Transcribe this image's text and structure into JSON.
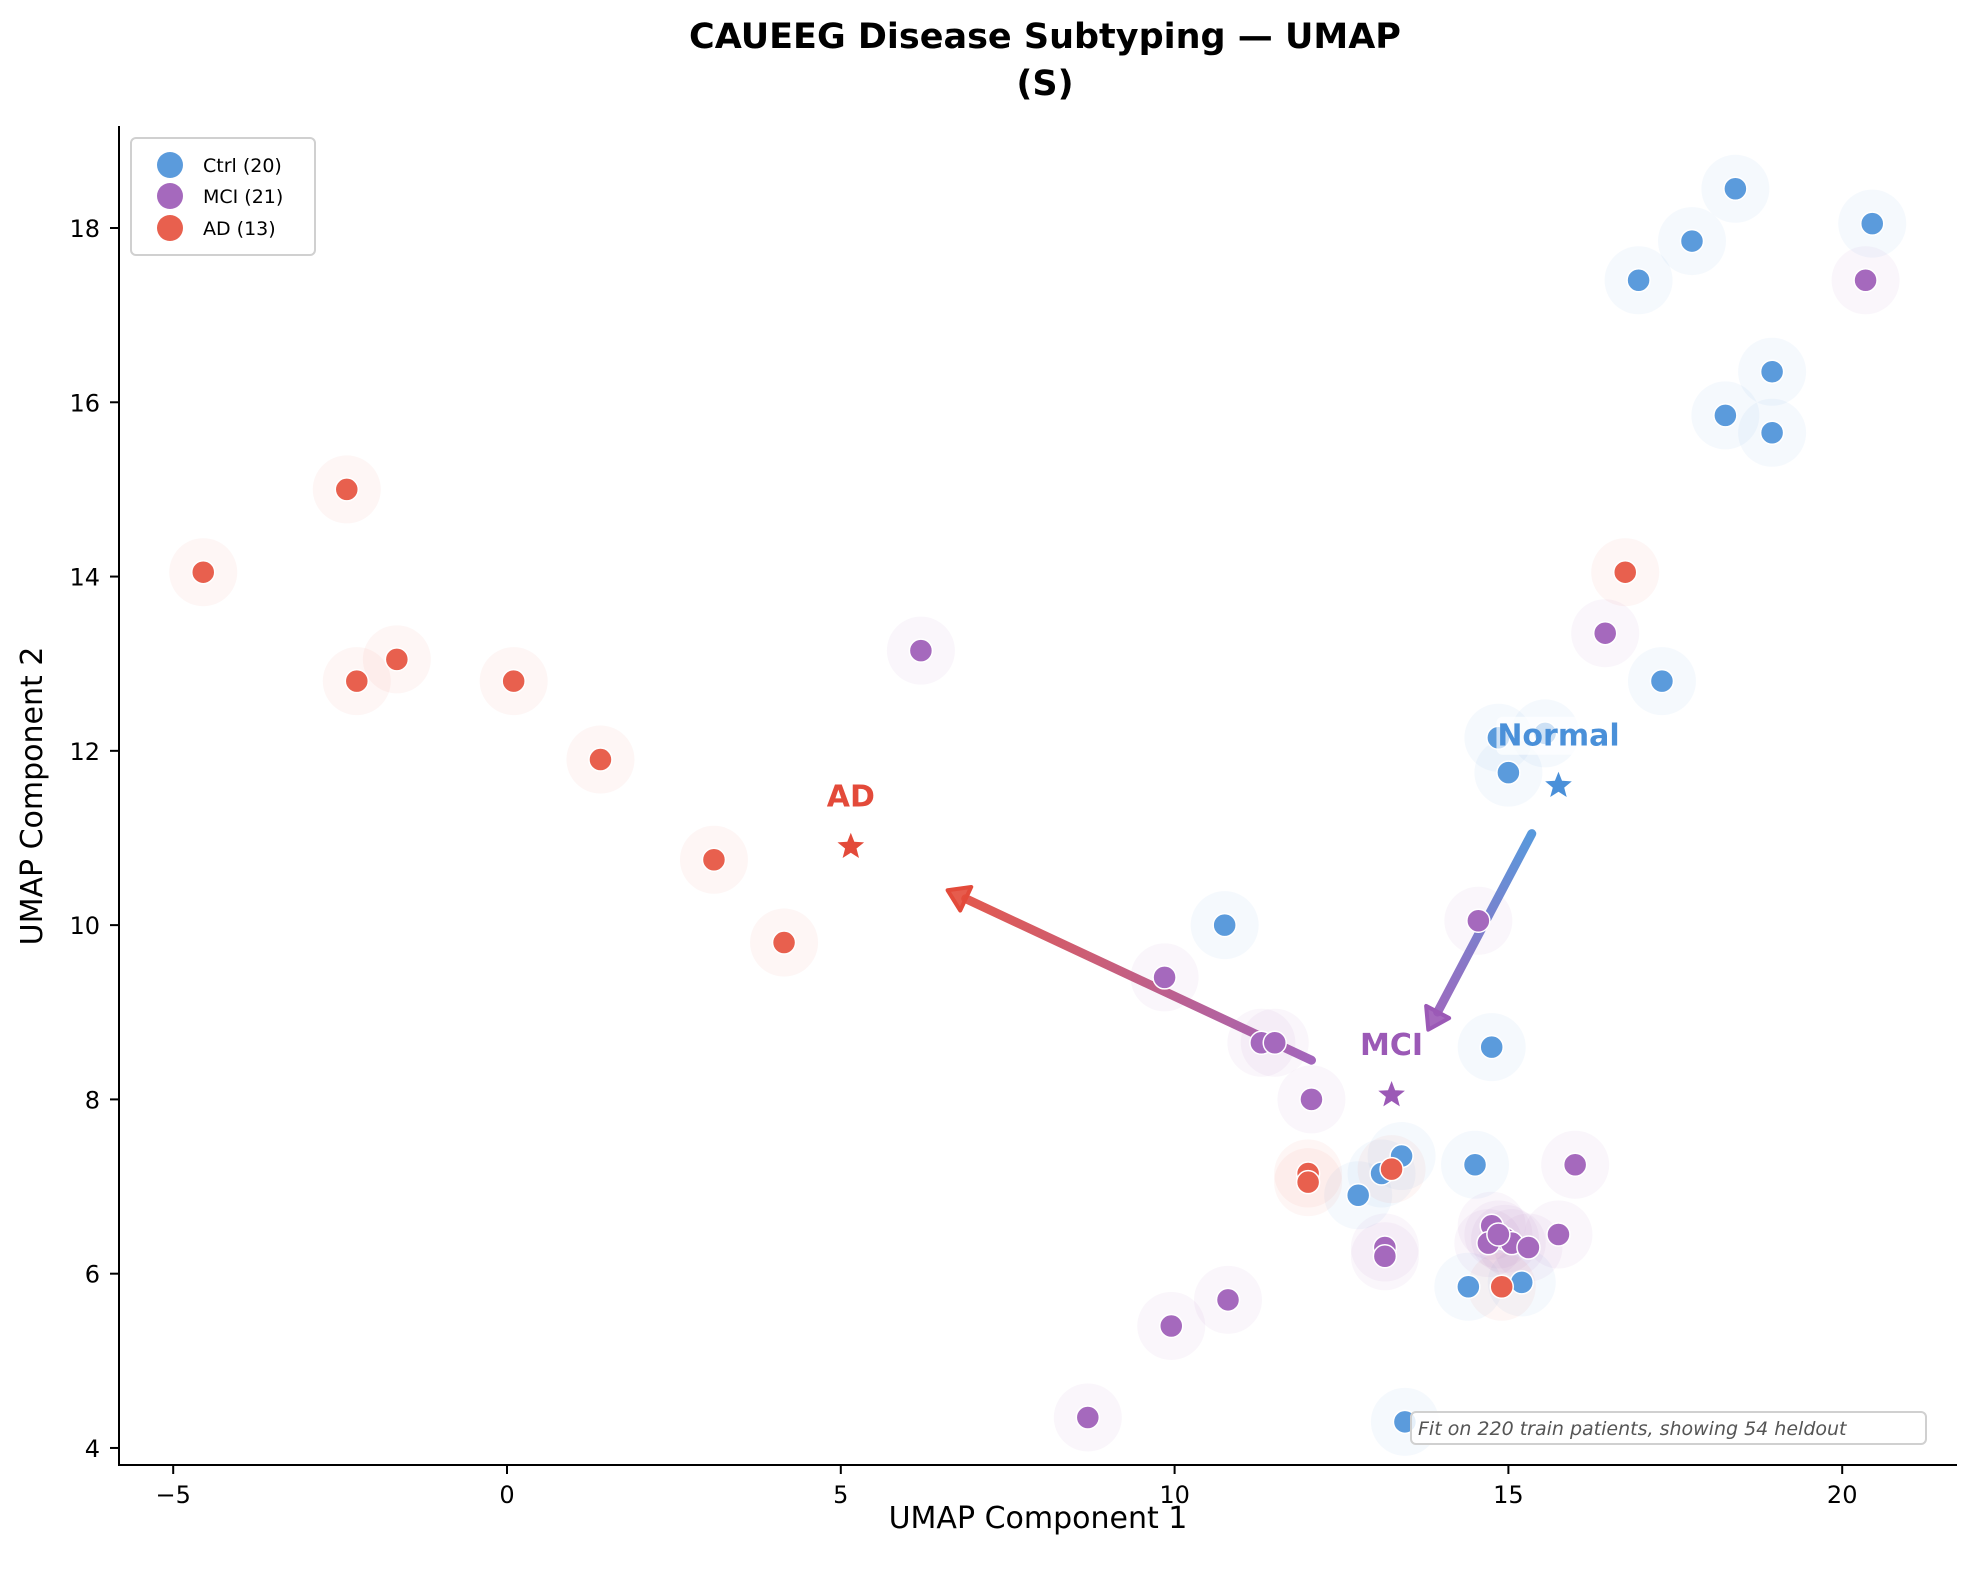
{
  "chart_data": {
    "type": "scatter",
    "title": "CAUEEG Disease Subtyping — UMAP",
    "subtitle": "(S)",
    "xlabel": "UMAP Component 1",
    "ylabel": "UMAP Component 2",
    "xlim": [
      -6.0,
      21.7
    ],
    "ylim": [
      3.6,
      19.2
    ],
    "xticks": [
      -5,
      0,
      5,
      10,
      15,
      20
    ],
    "xtick_labels": [
      "−5",
      "0",
      "5",
      "10",
      "15",
      "20"
    ],
    "yticks": [
      4,
      6,
      8,
      10,
      12,
      14,
      16,
      18
    ],
    "grid": false,
    "legend_position": "top-left",
    "annotation": "Fit on 220 train patients, showing 54 heldout",
    "series": [
      {
        "name": "Ctrl",
        "legend_label": "Ctrl (20)",
        "color": "#5b9bdc",
        "points": [
          [
            18.4,
            18.45
          ],
          [
            20.45,
            18.05
          ],
          [
            17.75,
            17.85
          ],
          [
            16.95,
            17.4
          ],
          [
            18.95,
            16.35
          ],
          [
            18.25,
            15.85
          ],
          [
            18.95,
            15.65
          ],
          [
            17.3,
            12.8
          ],
          [
            15.0,
            11.75
          ],
          [
            10.75,
            10.0
          ],
          [
            14.75,
            8.6
          ],
          [
            13.4,
            7.35
          ],
          [
            14.5,
            7.25
          ],
          [
            13.1,
            7.15
          ],
          [
            12.75,
            6.9
          ],
          [
            15.2,
            5.9
          ],
          [
            14.4,
            5.85
          ],
          [
            13.45,
            4.3
          ],
          [
            14.85,
            12.15
          ],
          [
            15.55,
            12.2
          ]
        ]
      },
      {
        "name": "MCI",
        "legend_label": "MCI (21)",
        "color": "#a569bd",
        "points": [
          [
            20.35,
            17.4
          ],
          [
            16.45,
            13.35
          ],
          [
            6.2,
            13.15
          ],
          [
            14.55,
            10.05
          ],
          [
            9.85,
            9.4
          ],
          [
            11.3,
            8.65
          ],
          [
            11.5,
            8.65
          ],
          [
            12.05,
            8.0
          ],
          [
            16.0,
            7.25
          ],
          [
            14.75,
            6.55
          ],
          [
            14.95,
            6.4
          ],
          [
            14.7,
            6.35
          ],
          [
            15.05,
            6.35
          ],
          [
            15.3,
            6.3
          ],
          [
            15.75,
            6.45
          ],
          [
            13.15,
            6.3
          ],
          [
            13.15,
            6.2
          ],
          [
            10.8,
            5.7
          ],
          [
            9.95,
            5.4
          ],
          [
            8.7,
            4.35
          ],
          [
            14.85,
            6.45
          ]
        ]
      },
      {
        "name": "AD",
        "legend_label": "AD (13)",
        "color": "#e8604e",
        "points": [
          [
            -2.4,
            15.0
          ],
          [
            -4.55,
            14.05
          ],
          [
            16.75,
            14.05
          ],
          [
            -1.65,
            13.05
          ],
          [
            -2.25,
            12.8
          ],
          [
            0.1,
            12.8
          ],
          [
            1.4,
            11.9
          ],
          [
            3.1,
            10.75
          ],
          [
            4.15,
            9.8
          ],
          [
            12.0,
            7.15
          ],
          [
            12.0,
            7.05
          ],
          [
            13.25,
            7.2
          ],
          [
            14.9,
            5.85
          ]
        ]
      }
    ],
    "centroids": [
      {
        "label": "AD",
        "x": 5.15,
        "y": 10.9,
        "color": "#e34a3a"
      },
      {
        "label": "MCI",
        "x": 13.25,
        "y": 8.05,
        "color": "#9b59b6"
      },
      {
        "label": "Normal",
        "x": 15.75,
        "y": 11.6,
        "color": "#4a90d9"
      }
    ],
    "trajectory_arrows": [
      {
        "from": "Normal",
        "to": "MCI",
        "x0": 15.35,
        "y0": 11.05,
        "x1": 13.8,
        "y1": 8.8,
        "color_start": "#4a90d9",
        "color_end": "#9b59b6"
      },
      {
        "from": "MCI",
        "to": "AD",
        "x0": 12.05,
        "y0": 8.45,
        "x1": 6.6,
        "y1": 10.4,
        "color_start": "#9b59b6",
        "color_end": "#e34a3a"
      }
    ]
  }
}
